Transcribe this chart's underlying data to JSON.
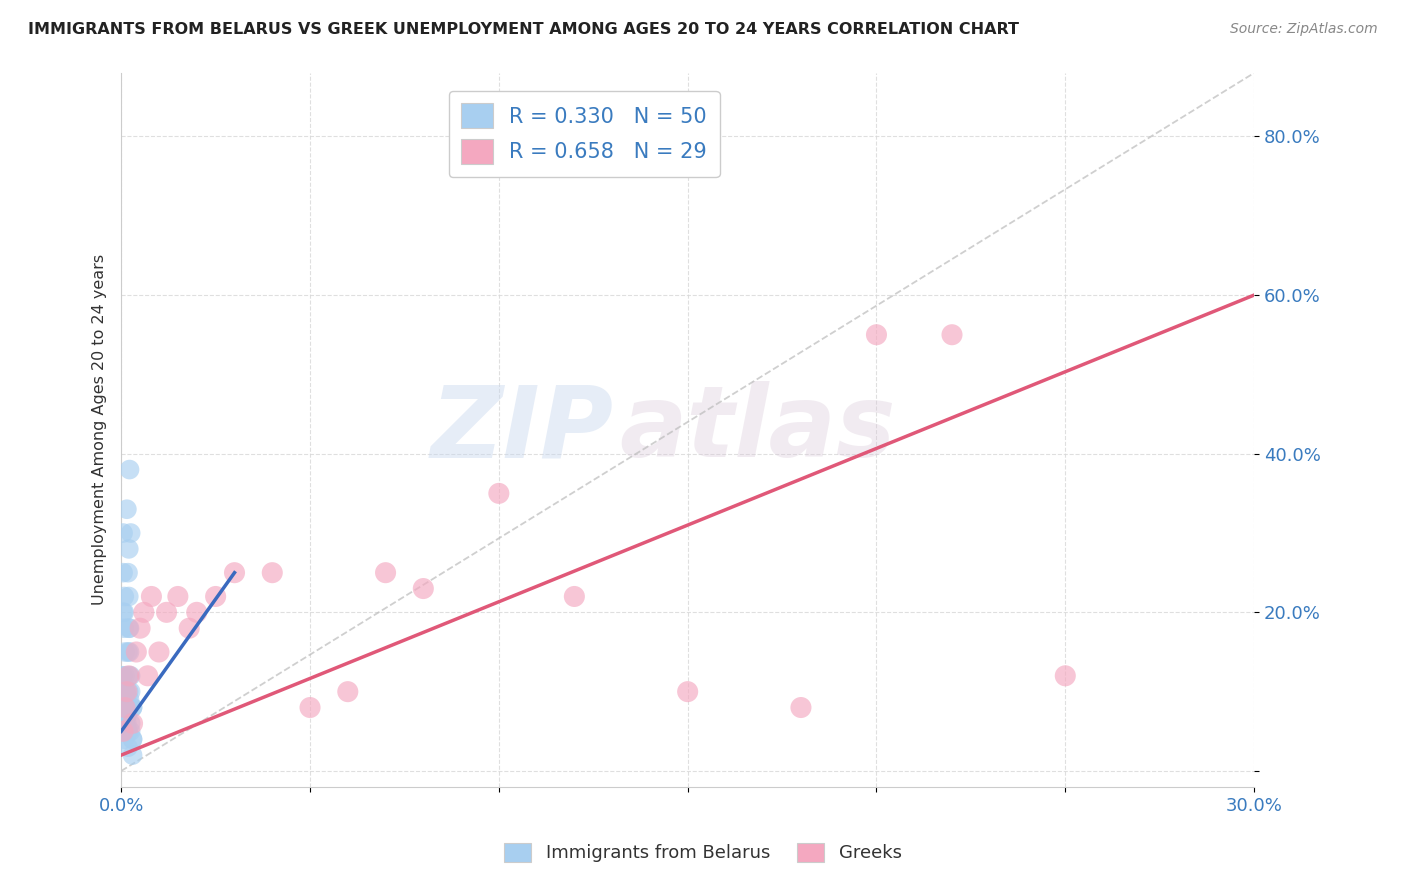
{
  "title": "IMMIGRANTS FROM BELARUS VS GREEK UNEMPLOYMENT AMONG AGES 20 TO 24 YEARS CORRELATION CHART",
  "source": "Source: ZipAtlas.com",
  "ylabel": "Unemployment Among Ages 20 to 24 years",
  "xlim": [
    0,
    0.3
  ],
  "ylim": [
    -0.02,
    0.88
  ],
  "yticks": [
    0.0,
    0.2,
    0.4,
    0.6,
    0.8
  ],
  "ytick_labels": [
    "",
    "20.0%",
    "40.0%",
    "60.0%",
    "80.0%"
  ],
  "legend1_r": "0.330",
  "legend1_n": "50",
  "legend2_r": "0.658",
  "legend2_n": "29",
  "color_blue": "#a8cff0",
  "color_pink": "#f4a8c0",
  "color_blue_line": "#3a6abf",
  "color_pink_line": "#e05878",
  "color_gray_dash": "#bbbbbb",
  "blue_scatter_x": [
    0.0005,
    0.0008,
    0.001,
    0.0012,
    0.0015,
    0.0018,
    0.002,
    0.0022,
    0.0025,
    0.003,
    0.0005,
    0.0008,
    0.001,
    0.0012,
    0.0015,
    0.0018,
    0.002,
    0.0022,
    0.0025,
    0.003,
    0.0005,
    0.0008,
    0.001,
    0.0012,
    0.0015,
    0.0018,
    0.002,
    0.0022,
    0.0025,
    0.003,
    0.0005,
    0.0008,
    0.001,
    0.0012,
    0.0015,
    0.0018,
    0.002,
    0.0022,
    0.0025,
    0.003,
    0.0005,
    0.0008,
    0.001,
    0.0012,
    0.0015,
    0.0018,
    0.002,
    0.0022,
    0.0025,
    0.003
  ],
  "blue_scatter_y": [
    0.05,
    0.04,
    0.08,
    0.06,
    0.07,
    0.03,
    0.1,
    0.09,
    0.05,
    0.04,
    0.12,
    0.08,
    0.06,
    0.1,
    0.05,
    0.15,
    0.12,
    0.08,
    0.06,
    0.04,
    0.2,
    0.18,
    0.1,
    0.08,
    0.06,
    0.05,
    0.22,
    0.15,
    0.1,
    0.08,
    0.25,
    0.2,
    0.12,
    0.1,
    0.07,
    0.05,
    0.28,
    0.18,
    0.12,
    0.08,
    0.3,
    0.22,
    0.15,
    0.1,
    0.33,
    0.25,
    0.18,
    0.38,
    0.3,
    0.02
  ],
  "pink_scatter_x": [
    0.0005,
    0.001,
    0.0015,
    0.002,
    0.003,
    0.004,
    0.005,
    0.006,
    0.007,
    0.008,
    0.01,
    0.012,
    0.015,
    0.018,
    0.02,
    0.025,
    0.03,
    0.04,
    0.05,
    0.06,
    0.07,
    0.08,
    0.1,
    0.12,
    0.15,
    0.18,
    0.2,
    0.22,
    0.25
  ],
  "pink_scatter_y": [
    0.05,
    0.08,
    0.1,
    0.12,
    0.06,
    0.15,
    0.18,
    0.2,
    0.12,
    0.22,
    0.15,
    0.2,
    0.22,
    0.18,
    0.2,
    0.22,
    0.25,
    0.25,
    0.08,
    0.1,
    0.25,
    0.23,
    0.35,
    0.22,
    0.1,
    0.08,
    0.55,
    0.55,
    0.12
  ],
  "blue_line_x": [
    0.0,
    0.03
  ],
  "blue_line_y": [
    0.05,
    0.25
  ],
  "pink_line_x": [
    0.0,
    0.3
  ],
  "pink_line_y": [
    0.02,
    0.6
  ],
  "gray_line_x": [
    0.0,
    0.3
  ],
  "gray_line_y": [
    0.0,
    0.88
  ],
  "watermark_zip": "ZIP",
  "watermark_atlas": "atlas",
  "background_color": "#ffffff"
}
